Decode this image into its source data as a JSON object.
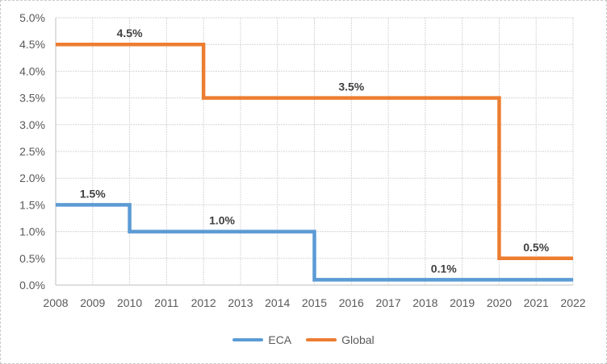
{
  "chart_data": {
    "type": "line",
    "step_style": true,
    "title": "",
    "xlabel": "",
    "ylabel": "",
    "xlim": [
      2008,
      2022
    ],
    "ylim": [
      0,
      5
    ],
    "y_tick_step": 0.5,
    "x_tick_labels": [
      "2008",
      "2009",
      "2010",
      "2011",
      "2012",
      "2013",
      "2014",
      "2015",
      "2016",
      "2017",
      "2018",
      "2019",
      "2020",
      "2021",
      "2022"
    ],
    "y_tick_labels": [
      "0.0%",
      "0.5%",
      "1.0%",
      "1.5%",
      "2.0%",
      "2.5%",
      "3.0%",
      "3.5%",
      "4.0%",
      "4.5%",
      "5.0%"
    ],
    "grid": true,
    "legend_position": "bottom",
    "series": [
      {
        "name": "ECA",
        "color": "#5B9BD5",
        "steps": [
          {
            "from": 2008,
            "to": 2010,
            "value": 1.5
          },
          {
            "from": 2010,
            "to": 2015,
            "value": 1.0
          },
          {
            "from": 2015,
            "to": 2022,
            "value": 0.1
          }
        ]
      },
      {
        "name": "Global",
        "color": "#ED7D31",
        "steps": [
          {
            "from": 2008,
            "to": 2012,
            "value": 4.5
          },
          {
            "from": 2012,
            "to": 2020,
            "value": 3.5
          },
          {
            "from": 2020,
            "to": 2022,
            "value": 0.5
          }
        ]
      }
    ],
    "data_labels": [
      {
        "text": "1.5%",
        "x": 2009,
        "y": 1.5,
        "series": "ECA"
      },
      {
        "text": "1.0%",
        "x": 2012.5,
        "y": 1.0,
        "series": "ECA"
      },
      {
        "text": "0.1%",
        "x": 2018.5,
        "y": 0.1,
        "series": "ECA"
      },
      {
        "text": "4.5%",
        "x": 2010,
        "y": 4.5,
        "series": "Global"
      },
      {
        "text": "3.5%",
        "x": 2016,
        "y": 3.5,
        "series": "Global"
      },
      {
        "text": "0.5%",
        "x": 2021,
        "y": 0.5,
        "series": "Global"
      }
    ]
  },
  "legend": {
    "items": [
      {
        "label": "ECA",
        "color": "#5B9BD5"
      },
      {
        "label": "Global",
        "color": "#ED7D31"
      }
    ]
  },
  "colors": {
    "grid": "#D6D6D6",
    "axis_line": "#BFBFBF",
    "axis_text": "#595959",
    "data_label_text": "#404040",
    "frame_border": "#C9C9C9",
    "background": "#FFFFFF"
  }
}
